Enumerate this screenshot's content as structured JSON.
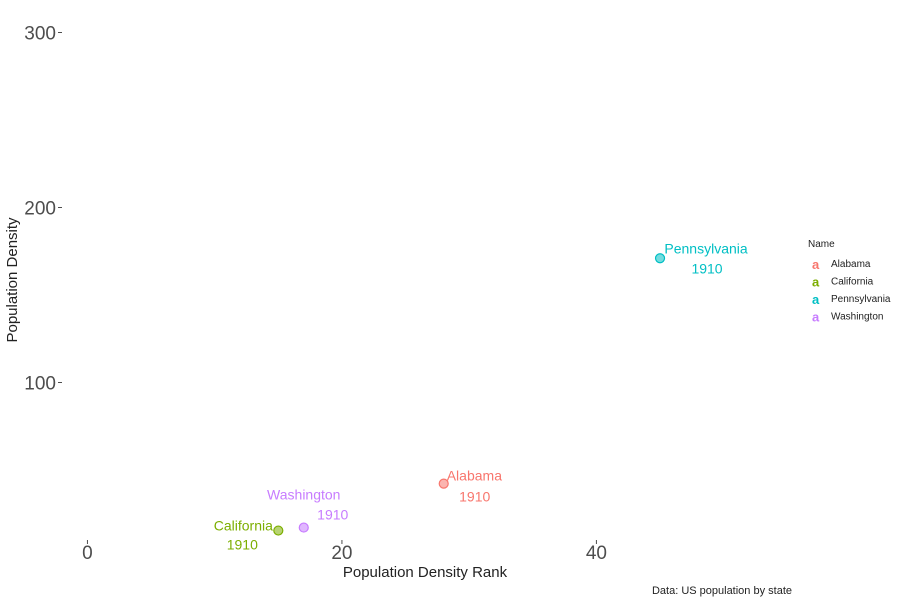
{
  "chart_data": {
    "type": "scatter",
    "xlabel": "Population Density Rank",
    "ylabel": "Population Density",
    "caption": "Data: US population by state",
    "xlim": [
      -2,
      56
    ],
    "ylim": [
      10,
      310
    ],
    "x_ticks": [
      0,
      20,
      40
    ],
    "y_ticks": [
      100,
      200,
      300
    ],
    "grid": false,
    "legend": {
      "title": "Name",
      "placement": "right",
      "key_glyph": "a",
      "entries": [
        {
          "label": "Alabama",
          "color": "#F8766D"
        },
        {
          "label": "California",
          "color": "#7CAE00"
        },
        {
          "label": "Pennsylvania",
          "color": "#00BFC4"
        },
        {
          "label": "Washington",
          "color": "#C77CFF"
        }
      ]
    },
    "series": [
      {
        "name": "Alabama",
        "color": "#F8766D",
        "points": [
          {
            "x": 28,
            "y": 42.2,
            "label": "Alabama",
            "year": "1910"
          }
        ]
      },
      {
        "name": "California",
        "color": "#7CAE00",
        "points": [
          {
            "x": 15,
            "y": 15.4,
            "label": "California",
            "year": "1910"
          }
        ]
      },
      {
        "name": "Pennsylvania",
        "color": "#00BFC4",
        "points": [
          {
            "x": 45,
            "y": 171,
            "label": "Pennsylvania",
            "year": "1910"
          }
        ]
      },
      {
        "name": "Washington",
        "color": "#C77CFF",
        "points": [
          {
            "x": 17,
            "y": 17.1,
            "label": "Washington",
            "year": "1910"
          }
        ]
      }
    ]
  }
}
